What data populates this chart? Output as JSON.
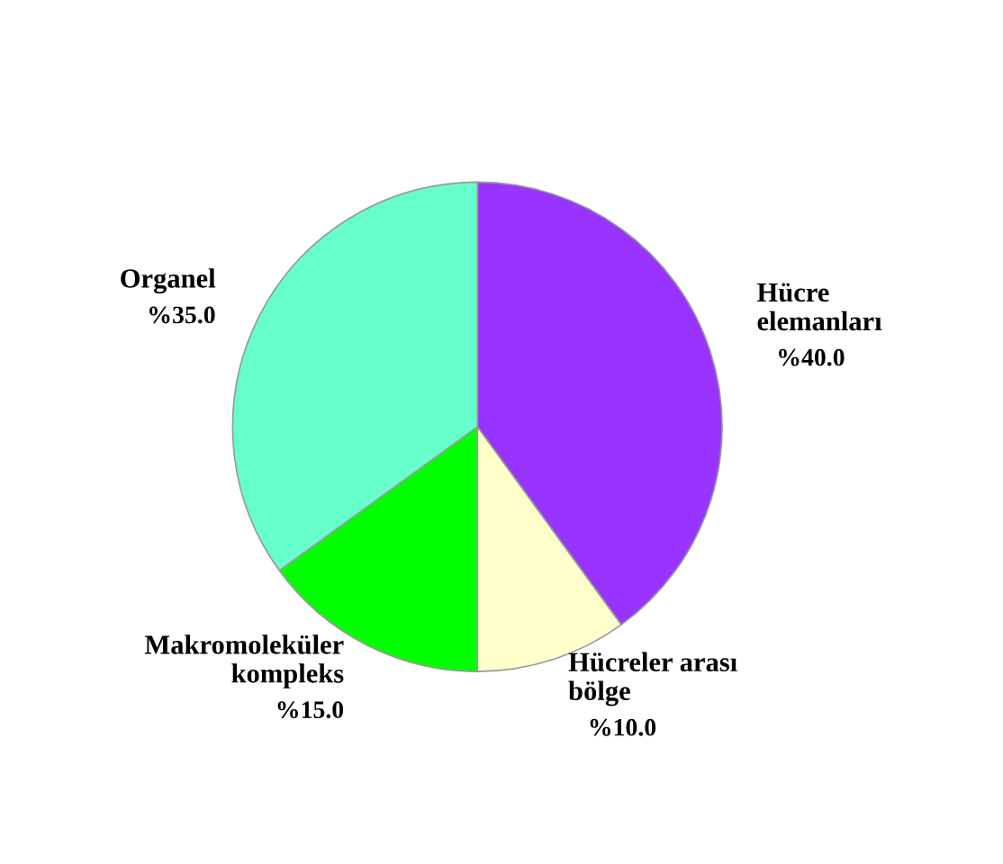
{
  "chart_data": {
    "type": "pie",
    "categories": [
      "Hücre\nelemanları",
      "Hücreler arası\nbölge",
      "Makromoleküler\nkompleks",
      "Organel"
    ],
    "values": [
      40,
      10,
      15,
      35
    ],
    "value_labels": [
      "%40.0",
      "%10.0",
      "%15.0",
      "%35.0"
    ],
    "colors": [
      "#9933ff",
      "#ffffcc",
      "#00ff00",
      "#66ffcc"
    ],
    "legend": false
  }
}
